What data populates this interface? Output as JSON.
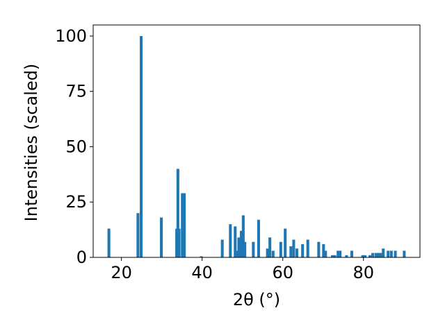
{
  "chart_data": {
    "type": "bar",
    "title": "",
    "xlabel": "2θ (°)",
    "ylabel": "Intensities (scaled)",
    "xlim": [
      13,
      94
    ],
    "ylim": [
      0,
      105
    ],
    "xticks": [
      20,
      40,
      60,
      80
    ],
    "yticks": [
      0,
      25,
      50,
      75,
      100
    ],
    "xtick_labels": [
      "20",
      "40",
      "60",
      "80"
    ],
    "ytick_labels": [
      "0",
      "25",
      "50",
      "75",
      "100"
    ],
    "grid": false,
    "legend": "none",
    "bar_color": "#1f77b4",
    "bar_width": 0.7,
    "x": [
      16.9,
      24.1,
      24.9,
      29.9,
      33.7,
      34.0,
      34.3,
      35.1,
      35.6,
      39.8,
      45.0,
      47.0,
      48.2,
      48.6,
      49.1,
      49.7,
      50.2,
      50.6,
      52.7,
      54.0,
      56.2,
      56.8,
      57.6,
      59.5,
      60.6,
      62.0,
      62.7,
      63.5,
      64.9,
      66.2,
      68.9,
      70.1,
      70.6,
      72.3,
      72.9,
      73.7,
      74.2,
      75.8,
      77.1,
      79.8,
      80.4,
      81.6,
      82.3,
      83.1,
      83.7,
      84.3,
      84.9,
      86.1,
      86.9,
      87.9,
      90.1
    ],
    "values": [
      13,
      20,
      100,
      18,
      13,
      40,
      13,
      29,
      29,
      0.5,
      8,
      15,
      14,
      3,
      9,
      12,
      19,
      7,
      7,
      17,
      4,
      9,
      3,
      7,
      13,
      5,
      8,
      4,
      6,
      8,
      7,
      6,
      3,
      1,
      1,
      3,
      3,
      1,
      3,
      1,
      1,
      1,
      2,
      2,
      2,
      2,
      4,
      3,
      3,
      3,
      3
    ]
  }
}
